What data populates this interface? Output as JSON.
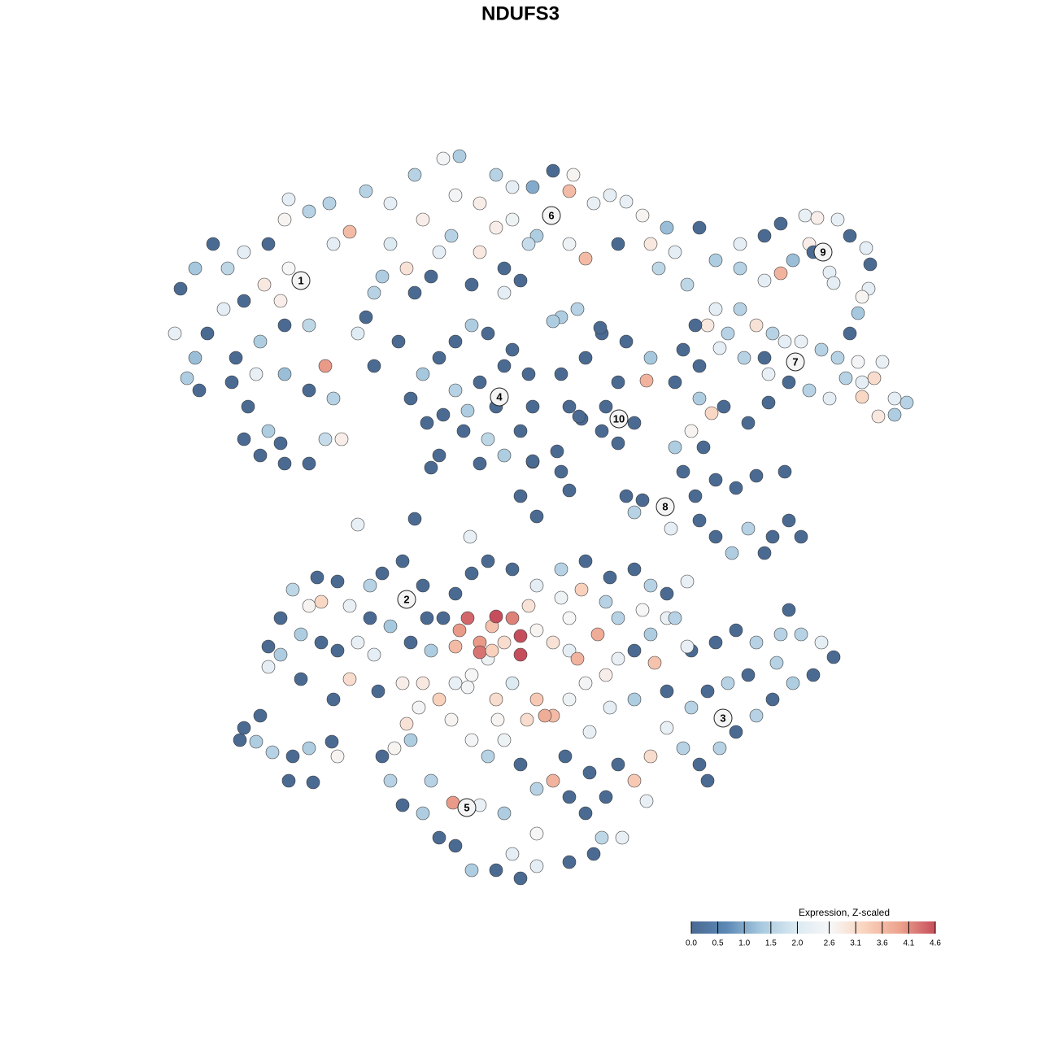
{
  "chart_data": {
    "type": "scatter",
    "title": "NDUFS3",
    "colorbar_title": "Expression, Z-scaled",
    "colors": [
      "#4a6a92",
      "#5b88b5",
      "#a7c9df",
      "#dbe9f2",
      "#f7f7f7",
      "#f9d2bd",
      "#eca18c",
      "#c64e5c"
    ],
    "clim": [
      0,
      4.6
    ],
    "cticks": [
      {
        "value": 0,
        "label": "0.0"
      },
      0.5,
      {
        "value": 1,
        "label": "1.0"
      },
      1.5,
      {
        "value": 2,
        "label": "2.0"
      },
      2.6,
      3.1,
      3.6,
      4.1,
      4.6
    ],
    "series": [
      {
        "x": [
          215,
          222,
          240,
          262,
          280,
          300,
          330,
          350,
          355,
          380,
          405,
          430,
          410,
          370,
          345,
          325,
          300,
          275,
          255,
          240,
          230,
          290,
          320,
          350,
          380,
          400,
          410,
          380,
          350,
          315,
          305,
          330,
          320,
          350,
          380,
          400,
          420,
          345,
          300,
          285,
          450,
          470,
          480,
          500,
          460,
          510,
          530,
          440,
          460,
          490,
          355,
          245,
          450,
          480,
          510,
          545,
          565,
          560,
          590,
          610,
          630,
          655,
          680,
          700,
          705,
          730,
          750,
          770,
          790,
          820,
          800,
          760,
          720,
          700,
          660,
          630,
          610,
          590,
          555,
          520,
          540,
          620,
          650,
          810,
          830,
          845,
          690,
          710,
          680,
          620,
          580,
          640,
          505,
          520,
          540,
          560,
          580,
          600,
          630,
          650,
          655,
          640,
          620,
          600,
          570,
          540,
          525,
          560,
          590,
          610,
          575,
          545,
          590,
          620,
          530,
          690,
          720,
          700,
          740,
          770,
          800,
          795,
          760,
          745,
          780,
          760,
          740,
          715,
          685,
          655,
          860,
          880,
          910,
          940,
          960,
          990,
          1005,
          1030,
          1045,
          1065,
          1070,
          1068,
          1055,
          1060,
          1020,
          995,
          975,
          960,
          940,
          910,
          1025,
          1045,
          1000,
          870,
          880,
          895,
          910,
          930,
          950,
          965,
          985,
          1010,
          1030,
          1055,
          1085,
          1075,
          1060,
          1040,
          1060,
          1080,
          1100,
          1115,
          1100,
          1020,
          995,
          970,
          945,
          940,
          915,
          885,
          860,
          840,
          855,
          830,
          860,
          875,
          850,
          830,
          840,
          865,
          890,
          920,
          945,
          880,
          905,
          930,
          965,
          970,
          950,
          920,
          900,
          880,
          860,
          855,
          820,
          790,
          770,
          780,
          825,
          985,
          940,
          640,
          700,
          660,
          690,
          510,
          440,
          578,
          738,
          712,
          655,
          330,
          345,
          360,
          380,
          390,
          415,
          430,
          455,
          470,
          495,
          520,
          525,
          505,
          480,
          455,
          440,
          415,
          395,
          370,
          345,
          330,
          370,
          410,
          430,
          460,
          465,
          395,
          295,
          300,
          320,
          315,
          335,
          360,
          380,
          355,
          385,
          415,
          408,
          780,
          800,
          820,
          850,
          880,
          905,
          930,
          960,
          985,
          1010,
          1025,
          1000,
          975,
          950,
          930,
          905,
          885,
          860,
          840,
          820,
          800,
          780,
          795,
          760,
          780,
          820,
          850,
          870,
          895,
          920,
          955,
          890,
          870,
          970,
          845,
          805,
          575,
          590,
          605,
          610,
          620,
          630,
          640,
          650,
          660,
          640,
          600,
          565,
          560,
          590,
          605,
          680,
          700,
          710,
          735,
          745,
          715,
          690,
          660,
          630,
          600,
          580,
          560,
          545,
          530,
          520,
          495,
          500,
          485,
          470,
          480,
          495,
          520,
          540,
          560,
          580,
          610,
          640,
          660,
          700,
          730,
          740,
          765,
          720,
          700,
          680,
          660,
          640,
          620,
          600,
          580,
          555,
          540,
          560,
          580,
          610,
          630,
          660,
          680,
          700,
          720,
          745,
          760,
          750,
          725,
          695,
          660,
          620,
          590,
          557,
          530,
          505,
          515,
          690,
          720,
          750,
          780,
          800,
          790,
          820,
          845,
          830,
          760,
          700,
          725,
          745,
          630,
          670,
          648,
          612,
          575
        ],
        "y": [
          870,
          925,
          950,
          980,
          950,
          970,
          980,
          1010,
          1035,
          1020,
          1030,
          995,
          980,
          935,
          910,
          930,
          910,
          900,
          870,
          840,
          815,
          840,
          860,
          880,
          880,
          830,
          790,
          800,
          820,
          820,
          780,
          750,
          720,
          710,
          710,
          740,
          740,
          735,
          740,
          810,
          890,
          940,
          980,
          950,
          920,
          920,
          940,
          870,
          830,
          860,
          950,
          800,
          1045,
          1030,
          1065,
          1085,
          1088,
          1040,
          1030,
          1065,
          1050,
          1050,
          1070,
          1045,
          1065,
          1030,
          1040,
          1032,
          1015,
          1000,
          980,
          980,
          962,
          980,
          990,
          1010,
          1000,
          970,
          990,
          1010,
          970,
          950,
          980,
          950,
          970,
          930,
          890,
          900,
          885,
          920,
          930,
          935,
          790,
          820,
          840,
          860,
          880,
          870,
          850,
          820,
          780,
          750,
          720,
          740,
          750,
          720,
          760,
          800,
          810,
          780,
          775,
          770,
          710,
          830,
          705,
          820,
          840,
          780,
          870,
          860,
          840,
          812,
          810,
          780,
          760,
          735,
          750,
          765,
          725,
          712,
          1000,
          960,
          980,
          990,
          1005,
          1015,
          1012,
          1010,
          990,
          975,
          955,
          925,
          895,
          915,
          945,
          980,
          960,
          944,
          935,
          950,
          932,
          870,
          970,
          880,
          900,
          870,
          900,
          880,
          870,
          860,
          860,
          850,
          840,
          835,
          835,
          815,
          810,
          815,
          792,
          768,
          790,
          785,
          770,
          790,
          800,
          810,
          820,
          840,
          840,
          852,
          830,
          850,
          880,
          810,
          790,
          772,
          750,
          730,
          700,
          730,
          780,
          760,
          785,
          690,
          680,
          695,
          700,
          640,
          620,
          630,
          600,
          620,
          640,
          670,
          658,
          665,
          670,
          650,
          630,
          620,
          600,
          670,
          677,
          645,
          700,
          642,
          635,
          620,
          877,
          768,
          713,
          485,
          520,
          555,
          535,
          570,
          565,
          535,
          560,
          575,
          590,
          560,
          520,
          490,
          510,
          520,
          490,
          480,
          490,
          500,
          475,
          460,
          445,
          420,
          445,
          475,
          430,
          540,
          370,
          385,
          400,
          368,
          355,
          350,
          360,
          320,
          318,
          350,
          368,
          480,
          500,
          520,
          480,
          490,
          505,
          490,
          500,
          500,
          490,
          472,
          450,
          440,
          420,
          400,
          380,
          360,
          340,
          360,
          385,
          350,
          320,
          295,
          340,
          420,
          430,
          410,
          430,
          440,
          450,
          465,
          398,
          320,
          530,
          485,
          465,
          520,
          490,
          510,
          522,
          490,
          520,
          498,
          535,
          505,
          475,
          470,
          505,
          485,
          478,
          480,
          490,
          480,
          470,
          500,
          540,
          555,
          545,
          560,
          580,
          590,
          575,
          550,
          520,
          480,
          440,
          440,
          390,
          360,
          350,
          320,
          290,
          280,
          250,
          240,
          210,
          210,
          200,
          215,
          220,
          230,
          250,
          250,
          280,
          300,
          320,
          310,
          340,
          370,
          350,
          370,
          395,
          420,
          440,
          450,
          420,
          440,
          420,
          400,
          420,
          440,
          450,
          470,
          410,
          380,
          350,
          255,
          280,
          290,
          293,
          320,
          370,
          410,
          580,
          590,
          570,
          580,
          560,
          530,
          550,
          565,
          520,
          520,
          520,
          330,
          300,
          230,
          400,
          395,
          395,
          435
        ],
        "values": [
          2.3,
          0,
          1.3,
          0,
          1.6,
          2.2,
          0,
          2.7,
          2.2,
          1.5,
          1.5,
          3.6,
          2.2,
          2.0,
          2.8,
          2.9,
          0,
          2.2,
          0,
          1.2,
          1.4,
          0,
          1.4,
          0,
          1.6,
          4.0,
          1.5,
          0,
          1.2,
          2.3,
          0,
          1.4,
          0,
          0,
          0,
          1.7,
          2.8,
          0,
          0,
          0,
          0,
          1.4,
          2.0,
          3.0,
          1.5,
          0,
          0,
          2.1,
          0,
          0,
          2.6,
          0,
          1.5,
          2.2,
          1.5,
          2.5,
          1.4,
          2.5,
          2.8,
          1.5,
          2.2,
          1.0,
          0,
          3.6,
          2.7,
          2.3,
          2.2,
          2.3,
          2.7,
          1.2,
          2.9,
          0,
          3.6,
          2.4,
          1.4,
          2.4,
          2.8,
          2.9,
          1.5,
          2.8,
          2.2,
          0,
          1.7,
          1.6,
          2.2,
          1.6,
          1.4,
          1.5,
          1.4,
          2.2,
          0,
          0,
          0,
          1.3,
          0,
          0,
          1.4,
          0,
          0,
          0,
          0,
          0,
          1.4,
          1.6,
          0,
          0,
          0,
          1.5,
          0,
          0,
          1.4,
          0,
          0,
          0,
          0,
          0,
          0,
          0,
          0,
          0,
          1.3,
          3.7,
          0,
          0,
          0,
          0,
          0,
          0,
          0,
          0,
          0,
          1.4,
          2.2,
          0,
          0,
          2.3,
          2.8,
          2.3,
          0,
          2.2,
          0,
          2.2,
          1.3,
          2.7,
          2.2,
          2.8,
          1.2,
          3.7,
          2.2,
          1.5,
          2.2,
          0,
          0,
          2.9,
          2.2,
          1.5,
          1.5,
          3.0,
          1.5,
          2.2,
          2.3,
          1.5,
          1.5,
          2.5,
          2.3,
          3.1,
          2.2,
          1.5,
          3.2,
          2.9,
          2.2,
          1.5,
          1.4,
          2.2,
          1.5,
          0,
          2.3,
          0,
          1.5,
          2.2,
          0,
          0,
          0,
          0,
          1.4,
          3.2,
          2.7,
          1.4,
          0,
          0,
          0,
          0,
          0,
          0,
          0,
          0,
          0,
          0,
          0,
          1.5,
          1.4,
          0,
          0,
          0,
          1.4,
          0,
          0,
          1.5,
          2.2,
          0,
          0,
          0,
          0,
          0,
          0,
          0,
          2.3,
          2.3,
          0,
          0,
          0,
          0,
          0,
          1.6,
          2.7,
          0,
          0,
          2.3,
          1.5,
          0,
          0,
          0,
          0,
          0,
          1.3,
          0,
          2.3,
          0,
          0,
          1.4,
          1.4,
          2.2,
          0,
          0,
          3.1,
          2.2,
          0,
          3.2,
          0,
          0,
          0,
          1.4,
          1.5,
          0,
          1.4,
          0,
          0,
          2.7,
          0,
          0,
          1.4,
          2.3,
          0,
          0,
          0,
          1.5,
          1.5,
          1.5,
          2.2,
          0,
          0,
          1.4,
          0,
          1.5,
          0,
          1.5,
          0,
          1.5,
          2.3,
          3.1,
          3.4,
          2.3,
          0,
          1.4,
          0,
          1.5,
          0,
          1.5,
          0,
          1.5,
          2.2,
          0,
          0,
          2.3,
          3.5,
          4.4,
          4.0,
          3.5,
          4.6,
          3.1,
          4.2,
          4.6,
          3.0,
          2.7,
          4.6,
          2.4,
          4.0,
          3.6,
          4.3,
          3.3,
          3.0,
          2.2,
          3.7,
          3.8,
          1.5,
          3.3,
          2.4,
          2.2,
          0,
          0,
          0,
          0,
          0,
          1.4,
          2.9,
          2.8,
          3.0,
          2.7,
          0,
          1.5,
          0,
          1.4,
          0,
          0,
          1.4,
          0,
          0,
          2.2,
          0,
          0,
          1.6,
          2.3,
          0,
          0,
          3.7,
          1.5,
          0,
          2.4,
          1.5,
          2.5,
          2.7,
          3.3,
          2.3,
          2.6,
          3.1,
          2.0,
          3.4,
          3.6,
          2.4,
          2.5,
          2.8,
          2.3,
          2.2,
          2.3,
          0,
          2.6,
          1.4,
          2.3,
          4.0,
          1.5,
          1.4,
          2.5,
          1.5,
          0,
          0,
          0,
          1.5,
          2.6,
          0,
          2.3,
          1.5,
          1.5,
          2.6,
          0,
          0,
          2.2,
          3.8,
          3.1,
          2.7,
          2.5
        ]
      }
    ],
    "clusters": [
      {
        "label": "1",
        "x": 370,
        "y": 935
      },
      {
        "label": "2",
        "x": 500,
        "y": 543
      },
      {
        "label": "3",
        "x": 889,
        "y": 397
      },
      {
        "label": "4",
        "x": 614,
        "y": 792
      },
      {
        "label": "5",
        "x": 574,
        "y": 287
      },
      {
        "label": "6",
        "x": 678,
        "y": 1015
      },
      {
        "label": "7",
        "x": 978,
        "y": 835
      },
      {
        "label": "8",
        "x": 818,
        "y": 657
      },
      {
        "label": "9",
        "x": 1012,
        "y": 970
      },
      {
        "label": "10",
        "x": 761,
        "y": 765
      }
    ]
  }
}
